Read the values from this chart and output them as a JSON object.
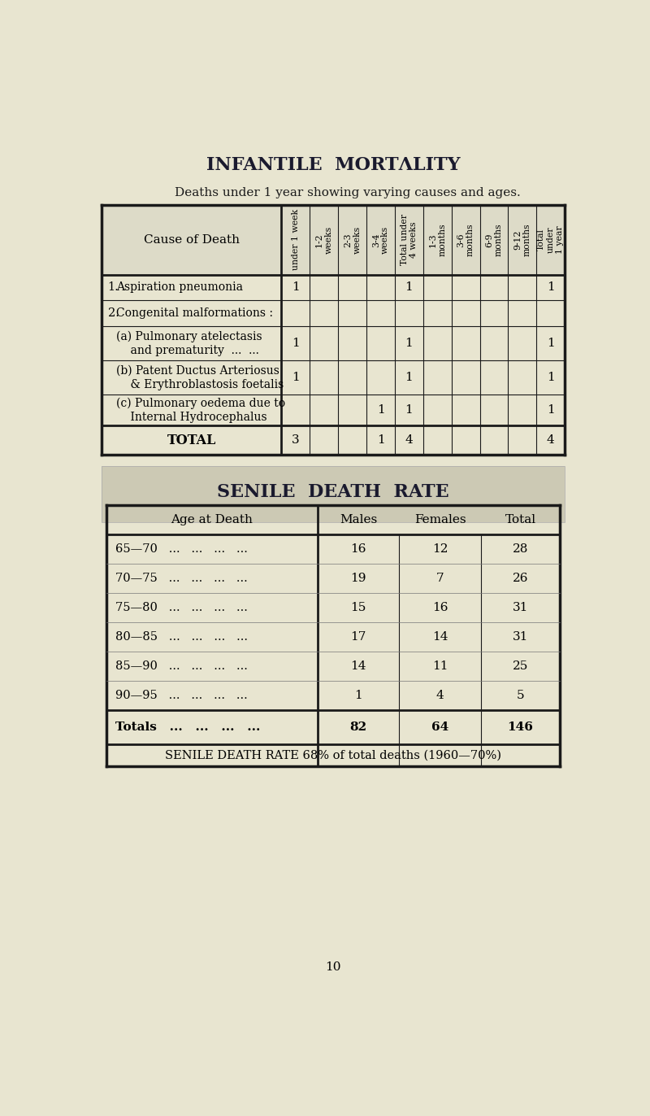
{
  "bg_color": "#e8e5d0",
  "title1": "INFANTILE  MORTΛLITY",
  "subtitle1": "Deaths under 1 year showing varying causes and ages.",
  "table1_col_headers": [
    "under 1 week",
    "1-2\nweeks",
    "2-3\nweeks",
    "3-4\nweeks",
    "Total under\n4 weeks",
    "1-3\nmonths",
    "3-6\nmonths",
    "6-9\nmonths",
    "9-12\nmonths",
    "Total\nunder\n1 year"
  ],
  "table1_data": [
    [
      1,
      "",
      "",
      "",
      1,
      "",
      "",
      "",
      "",
      1
    ],
    [
      "",
      "",
      "",
      "",
      "",
      "",
      "",
      "",
      "",
      ""
    ],
    [
      1,
      "",
      "",
      "",
      1,
      "",
      "",
      "",
      "",
      1
    ],
    [
      1,
      "",
      "",
      "",
      1,
      "",
      "",
      "",
      "",
      1
    ],
    [
      "",
      "",
      "",
      1,
      1,
      "",
      "",
      "",
      "",
      1
    ],
    [
      3,
      "",
      "",
      1,
      4,
      "",
      "",
      "",
      "",
      4
    ]
  ],
  "title2": "SENILE  DEATH  RATE",
  "table2_rows": [
    [
      "65—70",
      16,
      12,
      28
    ],
    [
      "70—75",
      19,
      7,
      26
    ],
    [
      "75—80",
      15,
      16,
      31
    ],
    [
      "80—85",
      17,
      14,
      31
    ],
    [
      "85—90",
      14,
      11,
      25
    ],
    [
      "90—95",
      1,
      4,
      5
    ]
  ],
  "table2_totals": [
    "Totals",
    82,
    64,
    146
  ],
  "table2_footer": "SENILE DEATH RATE 68% of total deaths (1960—70%)",
  "page_number": "10"
}
